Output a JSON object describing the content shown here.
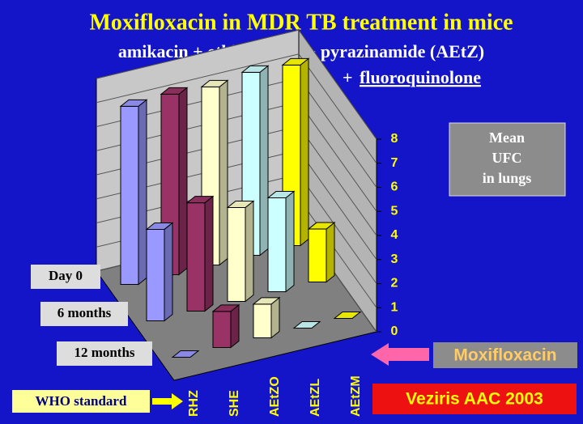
{
  "header": {
    "title": "Moxifloxacin in MDR TB treatment in mice",
    "subtitle": "amikacin + ethionamide + pyrazinamide (AEtZ)",
    "subtitle_prefix": "+",
    "subtitle_emphasis": "fluoroquinolone"
  },
  "chart_data": {
    "type": "bar3d",
    "categories": [
      "RHZ",
      "SHE",
      "AEtZO",
      "AEtZL",
      "AEtZM"
    ],
    "colors": [
      "#9999ff",
      "#993366",
      "#ffffcc",
      "#ccffff",
      "#ffff00"
    ],
    "series": [
      {
        "name": "Day 0",
        "values": [
          7.4,
          7.5,
          7.4,
          7.6,
          7.5
        ]
      },
      {
        "name": "6 months",
        "values": [
          3.8,
          4.5,
          3.9,
          3.9,
          2.2
        ]
      },
      {
        "name": "12 months",
        "values": [
          0,
          1.5,
          1.4,
          0,
          0
        ]
      }
    ],
    "ylim": [
      0,
      8
    ],
    "yticks": [
      0,
      1,
      2,
      3,
      4,
      5,
      6,
      7,
      8
    ],
    "axis_note": [
      "Mean",
      "UFC",
      "in lungs"
    ]
  },
  "annotations": {
    "highlight": "Moxifloxacin",
    "reference": "Veziris AAC 2003",
    "standard": "WHO standard"
  }
}
